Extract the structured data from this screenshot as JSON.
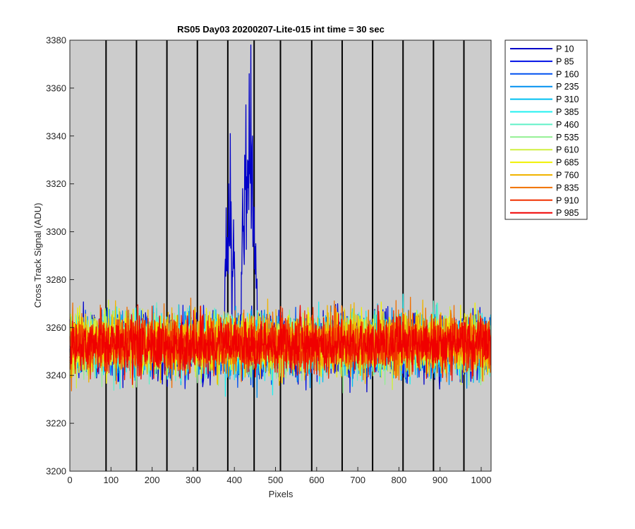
{
  "chart_data": {
    "type": "line",
    "title": "RS05 Day03 20200207-Lite-015 int time = 30 sec",
    "xlabel": "Pixels",
    "ylabel": "Cross Track Signal (ADU)",
    "xlim": [
      0,
      1024
    ],
    "ylim": [
      3200,
      3380
    ],
    "x_ticks": [
      0,
      100,
      200,
      300,
      400,
      500,
      600,
      700,
      800,
      900,
      1000
    ],
    "y_ticks": [
      3200,
      3220,
      3240,
      3260,
      3280,
      3300,
      3320,
      3340,
      3360,
      3380
    ],
    "vertical_markers": [
      88,
      162,
      236,
      310,
      384,
      448,
      512,
      588,
      662,
      736,
      810,
      884,
      958
    ],
    "plot_background": "#cccccc",
    "grid": false,
    "legend_position": "outside-top-right",
    "x_points": 1024,
    "series": [
      {
        "name": "P 10",
        "color": "#0000c8",
        "center": 3252,
        "spread": 12
      },
      {
        "name": "P 85",
        "color": "#0010e6",
        "center": 3252,
        "spread": 11
      },
      {
        "name": "P 160",
        "color": "#0050f0",
        "center": 3252,
        "spread": 11
      },
      {
        "name": "P 235",
        "color": "#0090f0",
        "center": 3252,
        "spread": 11
      },
      {
        "name": "P 310",
        "color": "#00c0f0",
        "center": 3253,
        "spread": 11
      },
      {
        "name": "P 385",
        "color": "#20f0f0",
        "center": 3253,
        "spread": 11
      },
      {
        "name": "P 460",
        "color": "#60f0c8",
        "center": 3253,
        "spread": 11
      },
      {
        "name": "P 535",
        "color": "#90f090",
        "center": 3253,
        "spread": 11
      },
      {
        "name": "P 610",
        "color": "#d0f040",
        "center": 3253,
        "spread": 11
      },
      {
        "name": "P 685",
        "color": "#f0f000",
        "center": 3253,
        "spread": 11
      },
      {
        "name": "P 760",
        "color": "#f0b400",
        "center": 3253,
        "spread": 11
      },
      {
        "name": "P 835",
        "color": "#f07000",
        "center": 3253,
        "spread": 11
      },
      {
        "name": "P 910",
        "color": "#f03000",
        "center": 3253,
        "spread": 10
      },
      {
        "name": "P 985",
        "color": "#f00000",
        "center": 3253,
        "spread": 10
      }
    ],
    "peaks": [
      {
        "series": "P 10",
        "x": 380,
        "y": 3310
      },
      {
        "series": "P 10",
        "x": 386,
        "y": 3320
      },
      {
        "series": "P 10",
        "x": 390,
        "y": 3341
      },
      {
        "series": "P 10",
        "x": 398,
        "y": 3305
      },
      {
        "series": "P 10",
        "x": 420,
        "y": 3318
      },
      {
        "series": "P 10",
        "x": 425,
        "y": 3332
      },
      {
        "series": "P 10",
        "x": 428,
        "y": 3353
      },
      {
        "series": "P 10",
        "x": 432,
        "y": 3330
      },
      {
        "series": "P 10",
        "x": 436,
        "y": 3366
      },
      {
        "series": "P 10",
        "x": 440,
        "y": 3378
      },
      {
        "series": "P 10",
        "x": 444,
        "y": 3340
      },
      {
        "series": "P 10",
        "x": 448,
        "y": 3310
      },
      {
        "series": "P 10",
        "x": 452,
        "y": 3295
      }
    ]
  }
}
